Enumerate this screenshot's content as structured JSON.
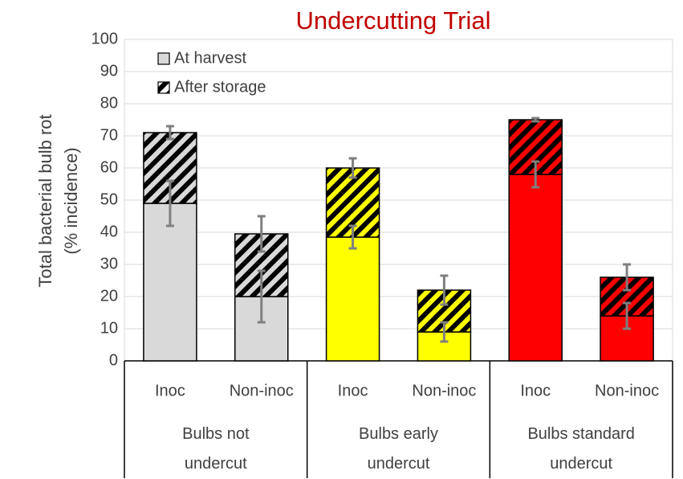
{
  "chart_data": {
    "type": "stacked_bar",
    "title": "Undercutting Trial",
    "ylabel": [
      "Total bacterial bulb rot",
      "(% incidence)"
    ],
    "categories": [
      "Inoc",
      "Non-inoc",
      "Inoc",
      "Non-inoc",
      "Inoc",
      "Non-inoc"
    ],
    "groups": [
      "Bulbs not undercut",
      "Bulbs early undercut",
      "Bulbs standard undercut"
    ],
    "colors": [
      "#d9d9d9",
      "#d9d9d9",
      "#ffff00",
      "#ffff00",
      "#ff0000",
      "#ff0000"
    ],
    "series": [
      {
        "name": "At harvest",
        "color": "#d9d9d9",
        "hatch": false,
        "values": [
          49,
          20,
          38.5,
          9,
          58,
          14
        ],
        "errors": [
          7,
          8,
          3.5,
          3,
          4,
          4
        ]
      },
      {
        "name": "After storage",
        "color": "#000000",
        "hatch": true,
        "values": [
          22,
          19.5,
          21.5,
          13,
          17,
          12
        ],
        "errors": [
          2,
          5.5,
          3,
          4.5,
          0.5,
          4
        ]
      }
    ],
    "ylim": [
      0,
      100
    ],
    "yticks": [
      0,
      10,
      20,
      30,
      40,
      50,
      60,
      70,
      80,
      90,
      100
    ],
    "grid": true,
    "legend": "top-left"
  }
}
